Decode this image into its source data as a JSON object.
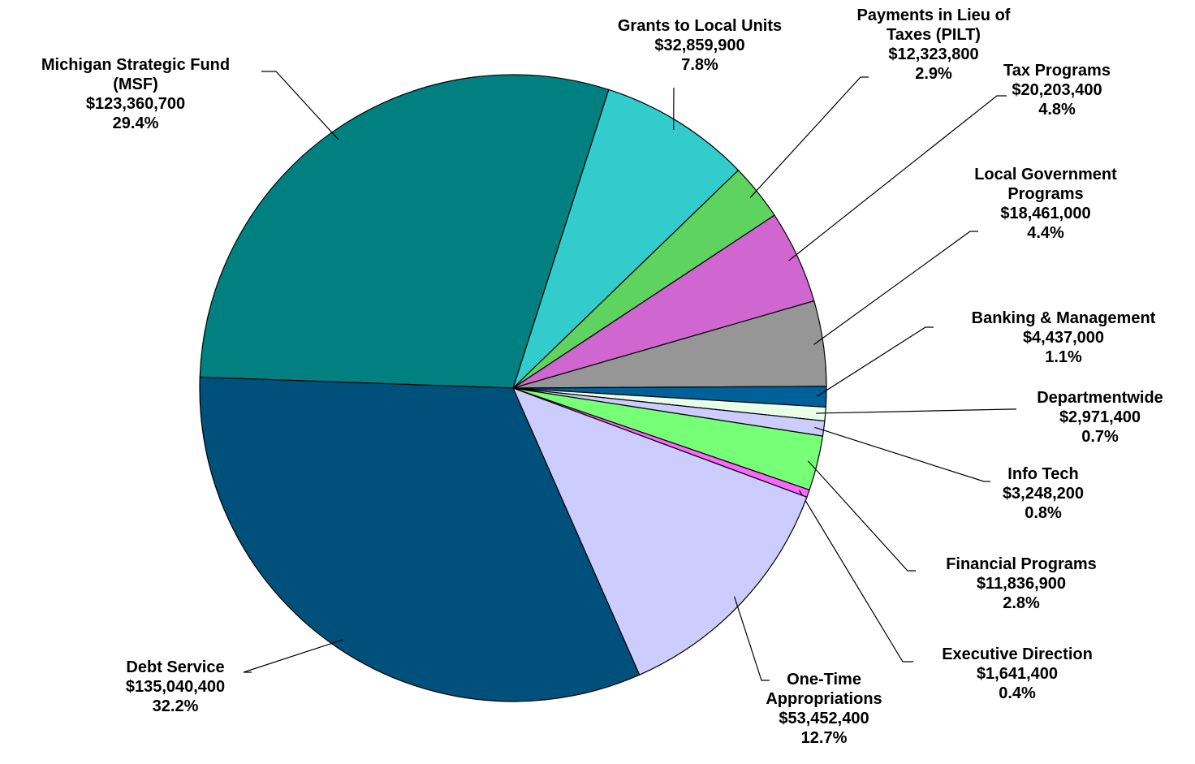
{
  "chart_data": {
    "type": "pie",
    "categories": [
      "Michigan Strategic Fund (MSF)",
      "Grants to Local Units",
      "Payments in Lieu of Taxes (PILT)",
      "Tax Programs",
      "Local Government Programs",
      "Banking & Management",
      "Departmentwide",
      "Info Tech",
      "Financial Programs",
      "Executive Direction",
      "One-Time Appropriations",
      "Debt Service"
    ],
    "values": [
      123360700,
      32859900,
      12323800,
      20203400,
      18461000,
      4437000,
      2971400,
      3248200,
      11836900,
      1641400,
      53452400,
      135040400
    ],
    "value_labels": [
      "$123,360,700",
      "$32,859,900",
      "$12,323,800",
      "$20,203,400",
      "$18,461,000",
      "$4,437,000",
      "$2,971,400",
      "$3,248,200",
      "$11,836,900",
      "$1,641,400",
      "$53,452,400",
      "$135,040,400"
    ],
    "shares": [
      29.4,
      7.8,
      2.9,
      4.8,
      4.4,
      1.1,
      0.7,
      0.8,
      2.8,
      0.4,
      12.7,
      32.2
    ],
    "share_labels": [
      "29.4%",
      "7.8%",
      "2.9%",
      "4.8%",
      "4.4%",
      "1.1%",
      "0.7%",
      "0.8%",
      "2.8%",
      "0.4%",
      "12.7%",
      "32.2%"
    ],
    "colors": [
      "#008080",
      "#33CCCC",
      "#5FD35F",
      "#D066D0",
      "#969696",
      "#00609A",
      "#E8FFE8",
      "#CCCCFF",
      "#77FF77",
      "#FF66FF",
      "#CCCCFF",
      "#00507C"
    ]
  }
}
